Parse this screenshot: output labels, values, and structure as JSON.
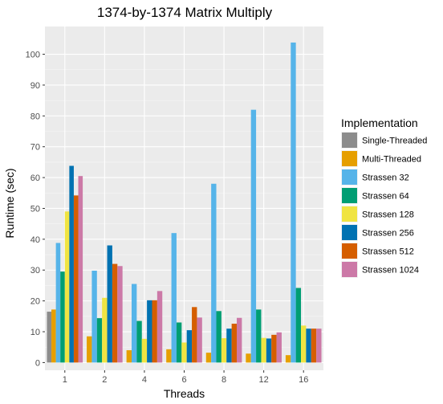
{
  "chart_data": {
    "type": "bar",
    "title": "1374-by-1374 Matrix Multiply",
    "xlabel": "Threads",
    "ylabel": "Runtime (sec)",
    "ylim": [
      -2.5,
      109
    ],
    "yticks": [
      0,
      10,
      20,
      30,
      40,
      50,
      60,
      70,
      80,
      90,
      100
    ],
    "categories": [
      "1",
      "2",
      "4",
      "6",
      "8",
      "12",
      "16"
    ],
    "legend_title": "Implementation",
    "legend_position": "right",
    "grid": true,
    "series": [
      {
        "name": "Single-Threaded",
        "color": "#8c8c8c",
        "values": [
          16.5,
          null,
          null,
          null,
          null,
          null,
          null
        ]
      },
      {
        "name": "Multi-Threaded",
        "color": "#e69f00",
        "values": [
          17.2,
          8.5,
          4.0,
          4.3,
          3.2,
          2.9,
          2.4
        ]
      },
      {
        "name": "Strassen 32",
        "color": "#56b4e9",
        "values": [
          38.8,
          29.8,
          25.5,
          42.0,
          58.0,
          82.0,
          103.8
        ]
      },
      {
        "name": "Strassen 64",
        "color": "#009e73",
        "values": [
          29.5,
          14.4,
          13.5,
          13.0,
          16.7,
          17.2,
          24.2
        ]
      },
      {
        "name": "Strassen 128",
        "color": "#f0e442",
        "values": [
          49.0,
          21.0,
          7.7,
          6.5,
          7.9,
          8.0,
          12.0
        ]
      },
      {
        "name": "Strassen 256",
        "color": "#0072b2",
        "values": [
          63.8,
          38.0,
          20.2,
          10.5,
          11.0,
          7.8,
          11.0
        ]
      },
      {
        "name": "Strassen 512",
        "color": "#d55e00",
        "values": [
          54.2,
          32.0,
          20.2,
          18.0,
          12.6,
          9.0,
          11.0
        ]
      },
      {
        "name": "Strassen 1024",
        "color": "#cc79a7",
        "values": [
          60.5,
          31.3,
          23.2,
          14.6,
          14.5,
          9.8,
          11.0
        ]
      }
    ]
  }
}
